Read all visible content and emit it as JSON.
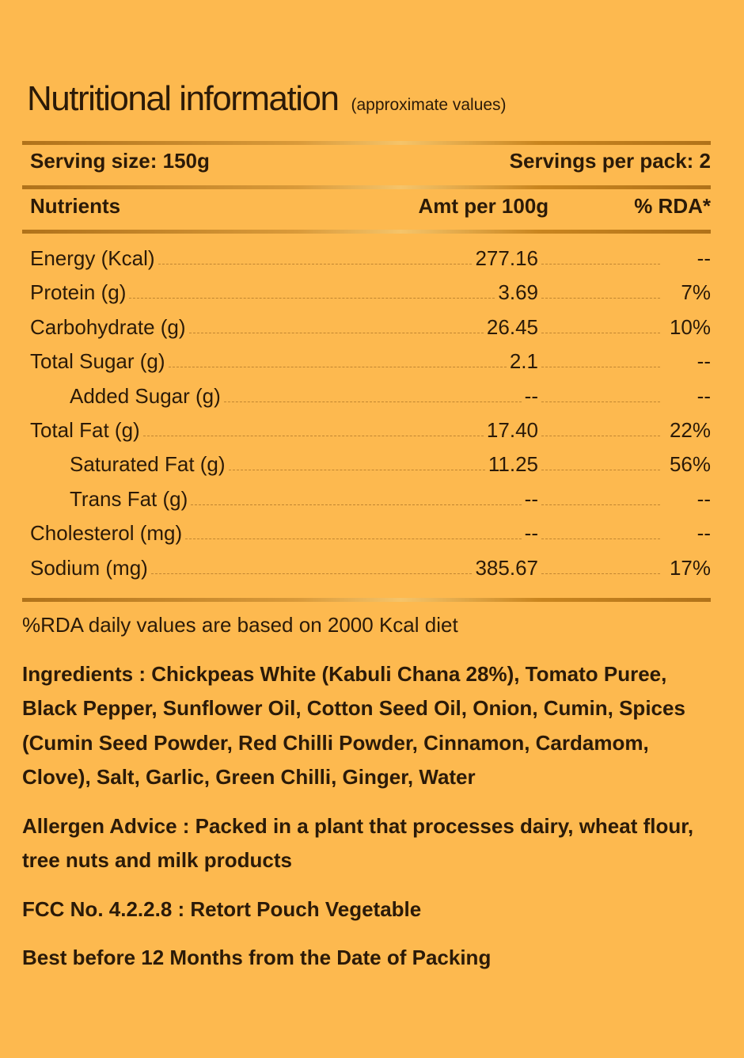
{
  "title": "Nutritional information",
  "subtitle": "(approximate values)",
  "serving_size": "Serving size: 150g",
  "servings_per_pack": "Servings per pack: 2",
  "columns": {
    "nutrients": "Nutrients",
    "amount": "Amt per 100g",
    "rda": "% RDA*"
  },
  "rows": [
    {
      "name": "Energy (Kcal)",
      "amount": "277.16",
      "rda": "--"
    },
    {
      "name": "Protein (g)",
      "amount": "3.69",
      "rda": "7%"
    },
    {
      "name": "Carbohydrate (g)",
      "amount": "26.45",
      "rda": "10%"
    },
    {
      "name": "Total Sugar (g)",
      "amount": "2.1",
      "rda": "--"
    },
    {
      "name": "Added Sugar (g)",
      "amount": "--",
      "rda": "--"
    },
    {
      "name": "Total Fat (g)",
      "amount": "17.40",
      "rda": "22%"
    },
    {
      "name": "Saturated Fat (g)",
      "amount": "11.25",
      "rda": "56%"
    },
    {
      "name": "Trans Fat (g)",
      "amount": "--",
      "rda": "--"
    },
    {
      "name": "Cholesterol (mg)",
      "amount": "--",
      "rda": "--"
    },
    {
      "name": "Sodium (mg)",
      "amount": "385.67",
      "rda": "17%"
    }
  ],
  "rda_note": "%RDA daily values are based on 2000 Kcal diet",
  "ingredients": {
    "label": "Ingredients : ",
    "text": "Chickpeas White (Kabuli Chana 28%), Tomato Puree, Black Pepper, Sunflower Oil, Cotton Seed Oil, Onion, Cumin, Spices (Cumin Seed Powder, Red Chilli Powder, Cinnamon, Cardamom, Clove), Salt, Garlic, Green Chilli, Ginger, Water"
  },
  "allergen": {
    "label": "Allergen Advice : ",
    "text": "Packed in a plant that processes dairy, wheat flour, tree nuts and milk products"
  },
  "fcc": {
    "label": "FCC No. 4.2.2.8 : ",
    "text": "Retort Pouch Vegetable"
  },
  "best_before": "Best before 12 Months from the Date of Packing",
  "colors": {
    "background": "#FDB94F",
    "rule": "#B0721A",
    "text": "#2B1A08"
  }
}
